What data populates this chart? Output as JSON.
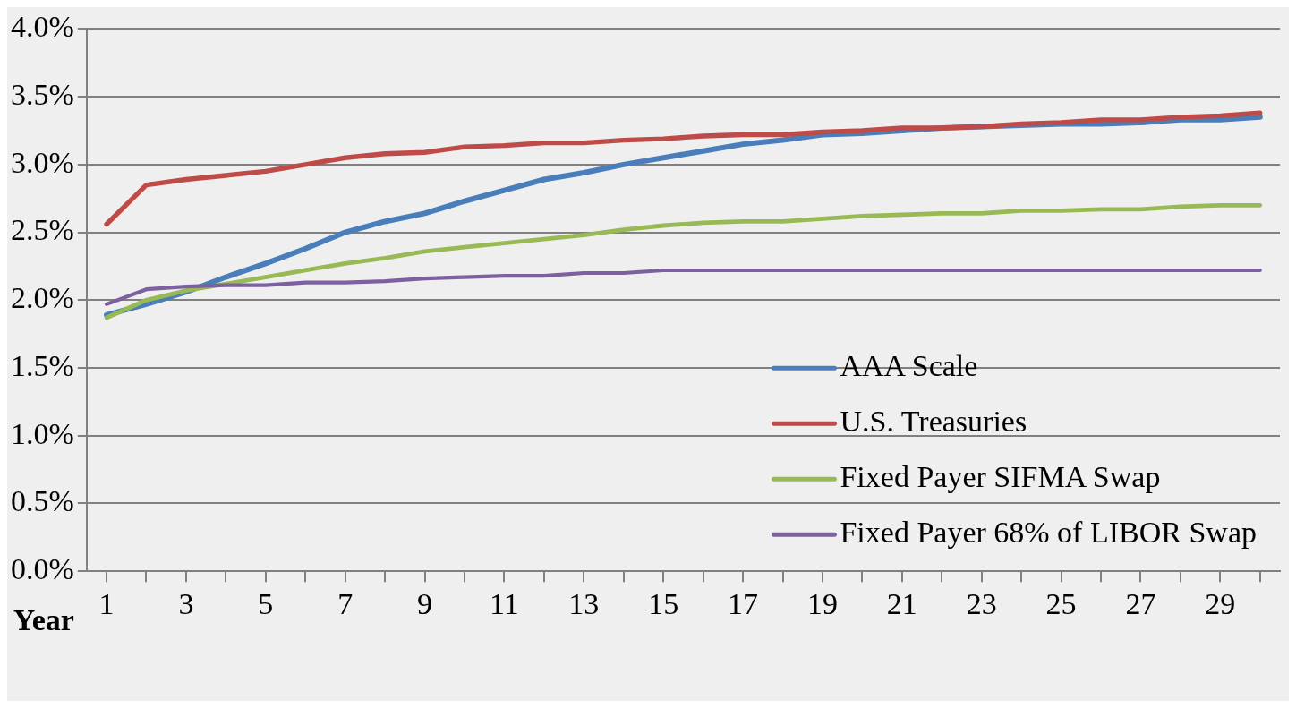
{
  "chart_data": {
    "type": "line",
    "xlabel": "Year",
    "x": [
      1,
      2,
      3,
      4,
      5,
      6,
      7,
      8,
      9,
      10,
      11,
      12,
      13,
      14,
      15,
      16,
      17,
      18,
      19,
      20,
      21,
      22,
      23,
      24,
      25,
      26,
      27,
      28,
      29,
      30
    ],
    "xlim": [
      0.5,
      30.5
    ],
    "xticks": [
      1,
      {
        "value": 2,
        "label": null
      },
      3,
      {
        "value": 4,
        "label": null
      },
      5,
      {
        "value": 6,
        "label": null
      },
      7,
      {
        "value": 8,
        "label": null
      },
      9,
      {
        "value": 10,
        "label": null
      },
      11,
      {
        "value": 12,
        "label": null
      },
      13,
      {
        "value": 14,
        "label": null
      },
      15,
      {
        "value": 16,
        "label": null
      },
      17,
      {
        "value": 18,
        "label": null
      },
      19,
      {
        "value": 20,
        "label": null
      },
      21,
      {
        "value": 22,
        "label": null
      },
      23,
      {
        "value": 24,
        "label": null
      },
      25,
      {
        "value": 26,
        "label": null
      },
      27,
      {
        "value": 28,
        "label": null
      },
      29,
      {
        "value": 30,
        "label": null
      }
    ],
    "series": [
      {
        "name": "AAA Scale",
        "color": "#4a7ebb",
        "values": [
          1.89,
          1.97,
          2.06,
          2.17,
          2.27,
          2.38,
          2.5,
          2.58,
          2.64,
          2.73,
          2.81,
          2.89,
          2.94,
          3.0,
          3.05,
          3.1,
          3.15,
          3.18,
          3.22,
          3.23,
          3.25,
          3.27,
          3.28,
          3.29,
          3.3,
          3.3,
          3.31,
          3.33,
          3.33,
          3.35
        ]
      },
      {
        "name": "U.S. Treasuries",
        "color": "#be4b48",
        "values": [
          2.56,
          2.85,
          2.89,
          2.92,
          2.95,
          3.0,
          3.05,
          3.08,
          3.09,
          3.13,
          3.14,
          3.16,
          3.16,
          3.18,
          3.19,
          3.21,
          3.22,
          3.22,
          3.24,
          3.25,
          3.27,
          3.27,
          3.28,
          3.3,
          3.31,
          3.33,
          3.33,
          3.35,
          3.36,
          3.38
        ]
      },
      {
        "name": "Fixed Payer SIFMA Swap",
        "color": "#98b954",
        "values": [
          1.87,
          2.0,
          2.07,
          2.12,
          2.17,
          2.22,
          2.27,
          2.31,
          2.36,
          2.39,
          2.42,
          2.45,
          2.48,
          2.52,
          2.55,
          2.57,
          2.58,
          2.58,
          2.6,
          2.62,
          2.63,
          2.64,
          2.64,
          2.66,
          2.66,
          2.67,
          2.67,
          2.69,
          2.7,
          2.7
        ]
      },
      {
        "name": "Fixed Payer 68% of LIBOR Swap",
        "color": "#7d60a0",
        "values": [
          1.97,
          2.08,
          2.1,
          2.11,
          2.11,
          2.13,
          2.13,
          2.14,
          2.16,
          2.17,
          2.18,
          2.18,
          2.2,
          2.2,
          2.22,
          2.22,
          2.22,
          2.22,
          2.22,
          2.22,
          2.22,
          2.22,
          2.22,
          2.22,
          2.22,
          2.22,
          2.22,
          2.22,
          2.22,
          2.22
        ]
      }
    ],
    "ylim": [
      0,
      4
    ],
    "yticks": [
      {
        "value": 0,
        "label": "0.0%"
      },
      {
        "value": 0.5,
        "label": "0.5%"
      },
      {
        "value": 1,
        "label": "1.0%"
      },
      {
        "value": 1.5,
        "label": "1.5%"
      },
      {
        "value": 2,
        "label": "2.0%"
      },
      {
        "value": 2.5,
        "label": "2.5%"
      },
      {
        "value": 3,
        "label": "3.0%"
      },
      {
        "value": 3.5,
        "label": "3.5%"
      },
      {
        "value": 4,
        "label": "4.0%"
      }
    ],
    "grid": "y",
    "legend": "bottom right",
    "marker": "none",
    "line_style": "solid"
  }
}
